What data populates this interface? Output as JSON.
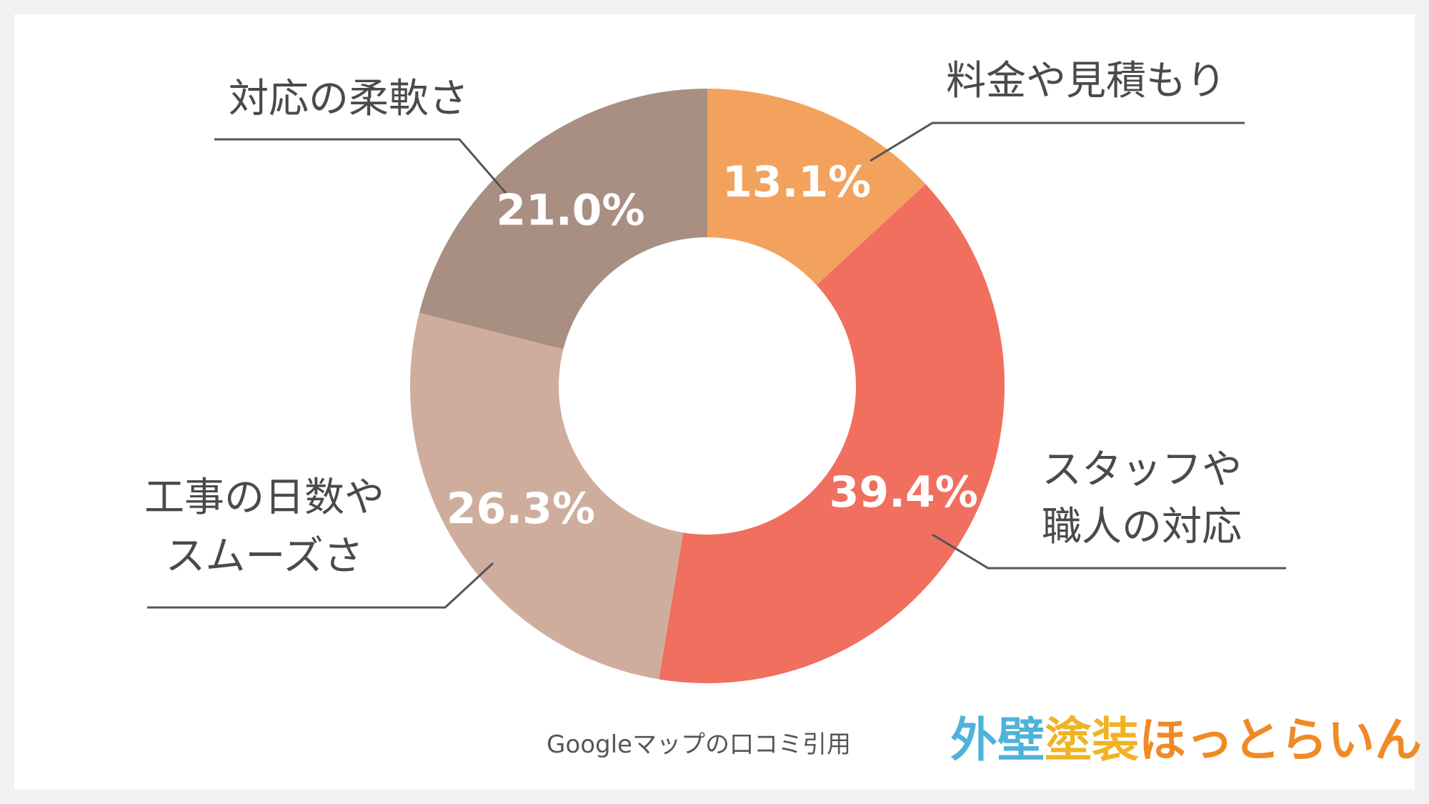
{
  "chart_data": {
    "type": "pie",
    "variant": "donut",
    "title": "",
    "slices": [
      {
        "label_lines": [
          "料金や見積もり"
        ],
        "value": 13.1,
        "value_label": "13.1%",
        "color": "#f3a25e"
      },
      {
        "label_lines": [
          "スタッフや",
          "職人の対応"
        ],
        "value": 39.4,
        "value_label": "39.4%",
        "color": "#f06f5f"
      },
      {
        "label_lines": [
          "工事の日数や",
          "スムーズさ"
        ],
        "value": 26.3,
        "value_label": "26.3%",
        "color": "#cfad9d"
      },
      {
        "label_lines": [
          "対応の柔軟さ"
        ],
        "value": 21.0,
        "value_label": "21.0%",
        "color": "#a88f82"
      }
    ],
    "start_angle_deg": 0,
    "direction": "clockwise",
    "legend": "none"
  },
  "source": "Googleマップの口コミ引用",
  "logo": {
    "part1": "外壁",
    "part2": "塗装",
    "part3": "ほっとらいん",
    "colors": [
      "#4fb3d9",
      "#f0b323",
      "#f08a24"
    ]
  }
}
